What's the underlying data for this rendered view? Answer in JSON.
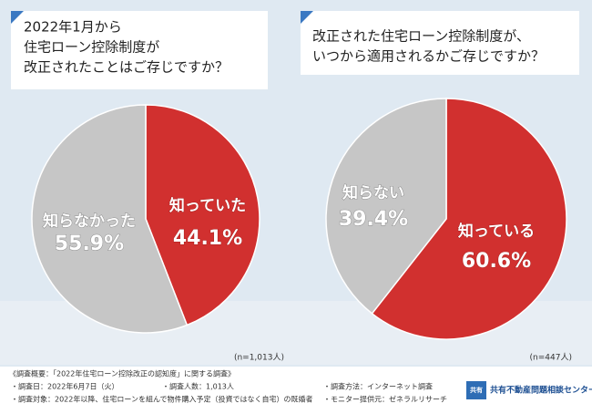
{
  "chart_data": [
    {
      "type": "pie",
      "title": [
        "2022年1月から",
        "住宅ローン控除制度が",
        "改正されたことはご存じですか？"
      ],
      "categories": [
        "知っていた",
        "知らなかった"
      ],
      "values": [
        44.1,
        55.9
      ],
      "value_labels": [
        "44.1%",
        "55.9%"
      ],
      "colors": [
        "#d1302f",
        "#c6c6c6"
      ],
      "note": "(n=1,013人)"
    },
    {
      "type": "pie",
      "title": [
        "改正された住宅ローン控除制度が、",
        "いつから適用されるかご存じですか？"
      ],
      "categories": [
        "知っている",
        "知らない"
      ],
      "values": [
        60.6,
        39.4
      ],
      "value_labels": [
        "60.6%",
        "39.4%"
      ],
      "colors": [
        "#d1302f",
        "#c6c6c6"
      ],
      "note": "(n=447人)"
    }
  ],
  "survey": {
    "heading": "《調査概要：「2022年住宅ローン控除改正の認知度」に関する調査》",
    "date": "・調査日：2022年6月7日（火）",
    "count": "・調査人数：1,013人",
    "method": "・調査方法：インターネット調査",
    "target": "・調査対象：2022年以降、住宅ローンを組んで物件購入予定（投資ではなく自宅）の既婚者",
    "provider": "・モニター提供元：ゼネラルリサーチ"
  },
  "logo": {
    "mark": "共有",
    "name": "共有不動産問題相談センター"
  }
}
